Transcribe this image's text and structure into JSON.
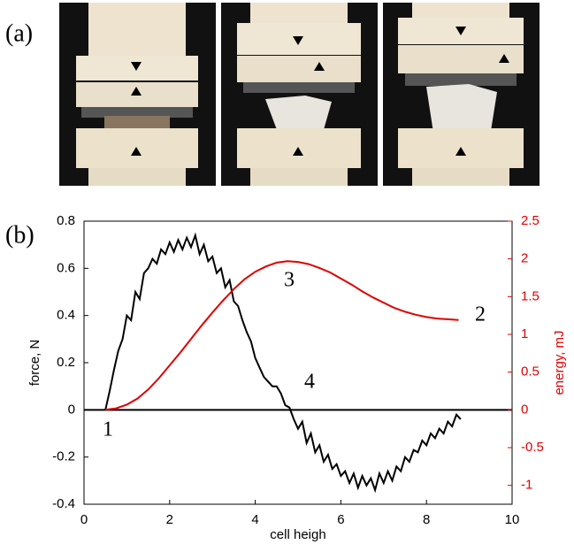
{
  "figure": {
    "panel_a_label": "(a)",
    "panel_b_label": "(b)"
  },
  "chart_data": {
    "type": "line",
    "x_label": "cell heigh",
    "y_label": "force, N",
    "y2_label": "energy, mJ",
    "xlim": [
      0,
      10
    ],
    "xticks": [
      0,
      2,
      4,
      6,
      8,
      10
    ],
    "ylim": [
      -0.4,
      0.8
    ],
    "yticks": [
      -0.4,
      -0.2,
      0,
      0.2,
      0.4,
      0.6,
      0.8
    ],
    "y2lim": [
      -1.25,
      2.5
    ],
    "y2ticks": [
      -1,
      -0.5,
      0,
      0.5,
      1,
      1.5,
      2,
      2.5
    ],
    "annotations": [
      "1",
      "2",
      "3",
      "4"
    ],
    "series": [
      {
        "color": "#000000",
        "x": [
          0.5,
          0.6,
          0.7,
          0.8,
          0.9,
          1.0,
          1.1,
          1.2,
          1.3,
          1.4,
          1.5,
          1.6,
          1.7,
          1.8,
          1.9,
          2.0,
          2.1,
          2.2,
          2.3,
          2.4,
          2.5,
          2.6,
          2.7,
          2.8,
          2.9,
          3.0,
          3.1,
          3.2,
          3.3,
          3.4,
          3.5,
          3.6,
          3.7,
          3.8,
          3.9,
          4.0,
          4.1,
          4.2,
          4.3,
          4.4,
          4.5,
          4.6,
          4.7,
          4.8,
          4.9,
          5.0,
          5.1,
          5.2,
          5.3,
          5.4,
          5.5,
          5.6,
          5.7,
          5.8,
          5.9,
          6.0,
          6.1,
          6.2,
          6.3,
          6.4,
          6.5,
          6.6,
          6.7,
          6.8,
          6.9,
          7.0,
          7.1,
          7.2,
          7.3,
          7.4,
          7.5,
          7.6,
          7.7,
          7.8,
          7.9,
          8.0,
          8.1,
          8.2,
          8.3,
          8.4,
          8.5,
          8.6,
          8.7,
          8.8
        ],
        "values": [
          0,
          0.08,
          0.17,
          0.25,
          0.3,
          0.4,
          0.38,
          0.5,
          0.47,
          0.58,
          0.6,
          0.64,
          0.62,
          0.68,
          0.66,
          0.71,
          0.67,
          0.72,
          0.68,
          0.73,
          0.69,
          0.74,
          0.66,
          0.7,
          0.63,
          0.65,
          0.58,
          0.6,
          0.52,
          0.55,
          0.46,
          0.44,
          0.38,
          0.33,
          0.29,
          0.22,
          0.18,
          0.14,
          0.12,
          0.1,
          0.1,
          0.07,
          0.02,
          0.01,
          -0.04,
          -0.08,
          -0.05,
          -0.14,
          -0.1,
          -0.18,
          -0.15,
          -0.22,
          -0.19,
          -0.25,
          -0.23,
          -0.28,
          -0.26,
          -0.31,
          -0.27,
          -0.33,
          -0.28,
          -0.32,
          -0.29,
          -0.34,
          -0.27,
          -0.31,
          -0.26,
          -0.3,
          -0.24,
          -0.26,
          -0.2,
          -0.22,
          -0.17,
          -0.18,
          -0.13,
          -0.15,
          -0.1,
          -0.12,
          -0.08,
          -0.1,
          -0.05,
          -0.07,
          -0.02,
          -0.04
        ]
      },
      {
        "color": "#e00000",
        "axis": "y2",
        "x": [
          0.5,
          0.75,
          1.0,
          1.25,
          1.5,
          1.75,
          2.0,
          2.25,
          2.5,
          2.75,
          3.0,
          3.25,
          3.5,
          3.75,
          4.0,
          4.25,
          4.5,
          4.75,
          5.0,
          5.25,
          5.5,
          5.75,
          6.0,
          6.25,
          6.5,
          6.75,
          7.0,
          7.25,
          7.5,
          7.75,
          8.0,
          8.25,
          8.5,
          8.75
        ],
        "values": [
          0,
          0.02,
          0.07,
          0.15,
          0.27,
          0.42,
          0.59,
          0.76,
          0.94,
          1.12,
          1.29,
          1.45,
          1.6,
          1.73,
          1.83,
          1.9,
          1.95,
          1.97,
          1.96,
          1.93,
          1.88,
          1.82,
          1.74,
          1.66,
          1.57,
          1.49,
          1.42,
          1.35,
          1.3,
          1.26,
          1.23,
          1.21,
          1.2,
          1.19
        ]
      }
    ]
  }
}
